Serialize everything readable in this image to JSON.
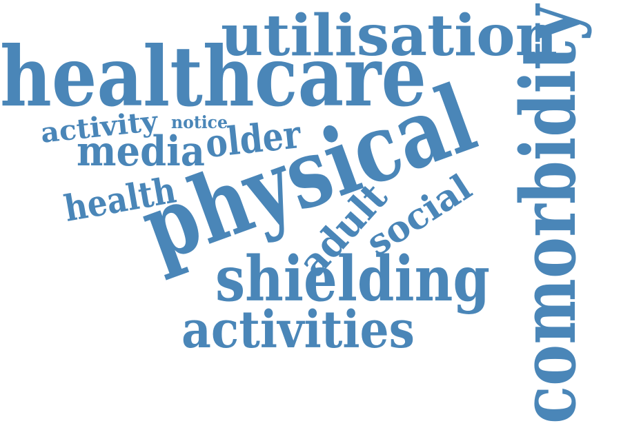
{
  "cloud": {
    "color": "#4a86b8",
    "words": [
      "utilisation",
      "healthcare",
      "comorbidity",
      "physical",
      "activity",
      "notice",
      "older",
      "media",
      "health",
      "adult",
      "social",
      "shielding",
      "activities"
    ]
  }
}
